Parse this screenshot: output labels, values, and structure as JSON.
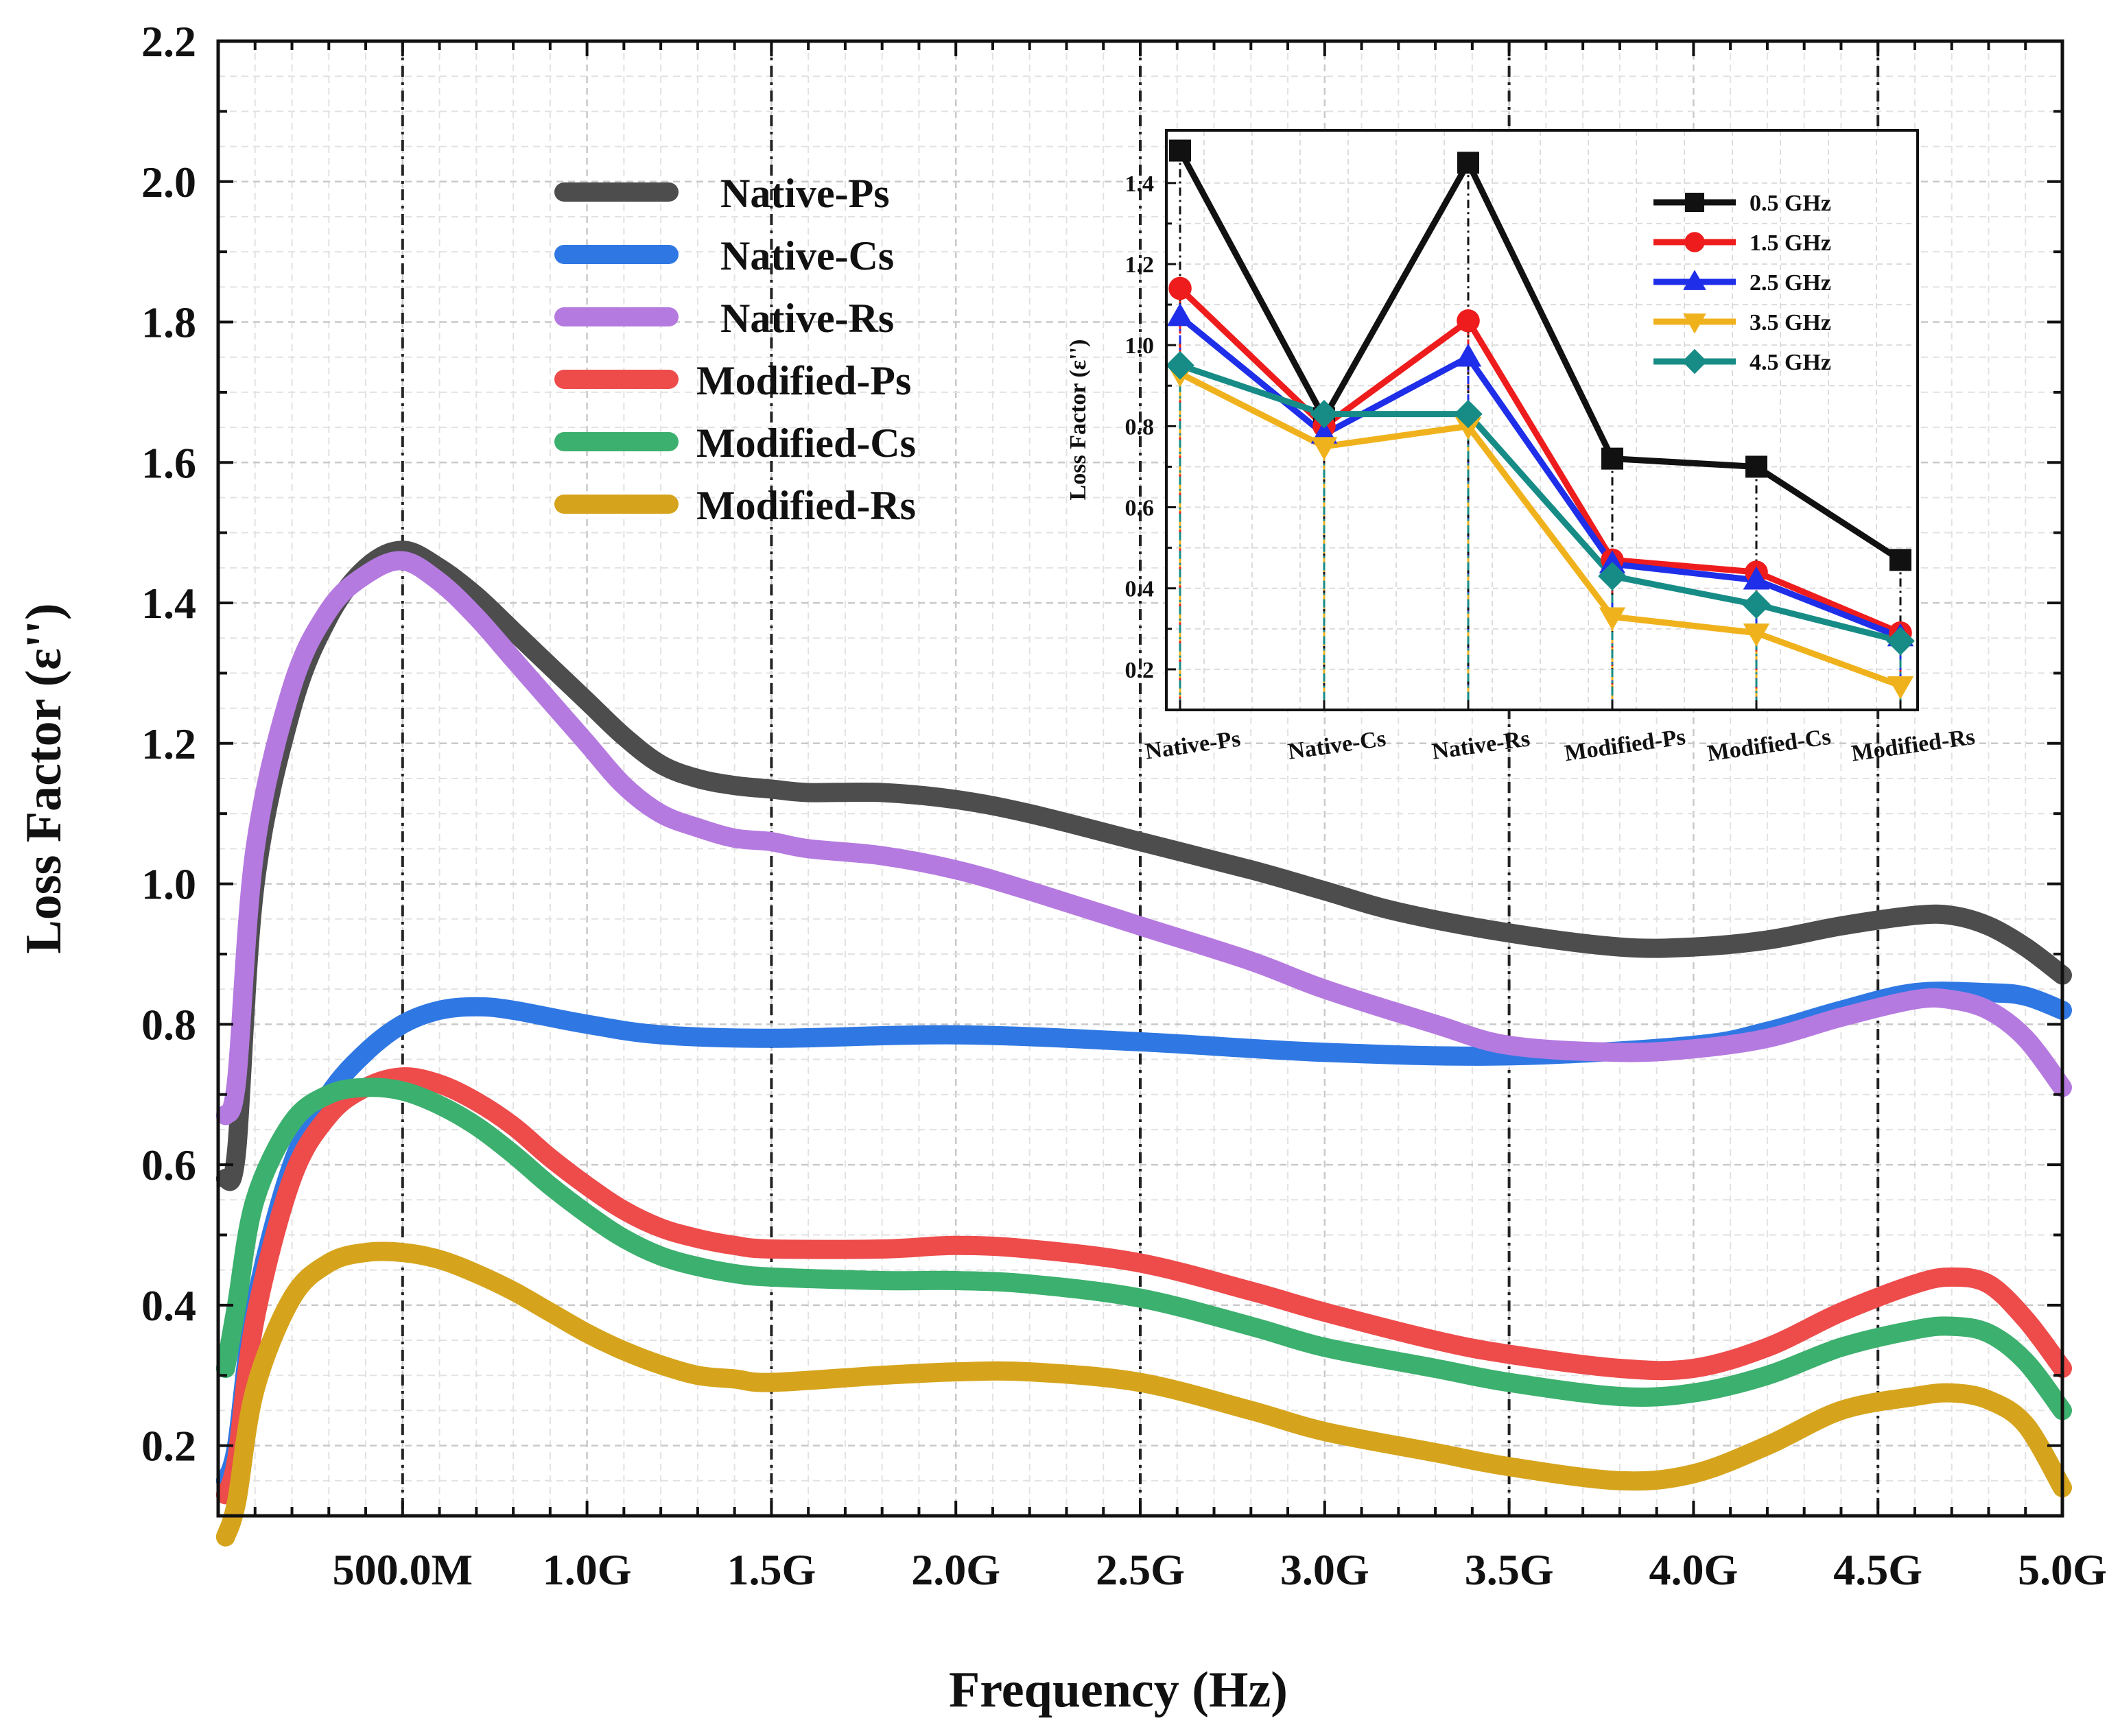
{
  "chart_data": [
    {
      "type": "line",
      "title": "",
      "xlabel": "Frequency (Hz)",
      "ylabel": "Loss Factor (ε'')",
      "xlim": [
        0,
        5.0
      ],
      "ylim": [
        0.1,
        2.2
      ],
      "x_unit": "GHz",
      "xtick_values": [
        0.5,
        1.0,
        1.5,
        2.0,
        2.5,
        3.0,
        3.5,
        4.0,
        4.5,
        5.0
      ],
      "xtick_labels": [
        "500.0M",
        "1.0G",
        "1.5G",
        "2.0G",
        "2.5G",
        "3.0G",
        "3.5G",
        "4.0G",
        "4.5G",
        "5.0G"
      ],
      "ytick_values": [
        0.2,
        0.4,
        0.6,
        0.8,
        1.0,
        1.2,
        1.4,
        1.6,
        1.8,
        2.0,
        2.2
      ],
      "ytick_labels": [
        "0.2",
        "0.4",
        "0.6",
        "0.8",
        "1.0",
        "1.2",
        "1.4",
        "1.6",
        "1.8",
        "2.0",
        "2.2"
      ],
      "reference_lines_x": [
        0.5,
        1.5,
        2.5,
        3.5,
        4.5
      ],
      "grid": true,
      "legend_position": "upper-center-left",
      "series": [
        {
          "name": "Native-Ps",
          "color": "#4d4d4d",
          "x": [
            0.02,
            0.05,
            0.1,
            0.2,
            0.3,
            0.4,
            0.5,
            0.6,
            0.7,
            0.8,
            0.9,
            1.0,
            1.1,
            1.2,
            1.3,
            1.4,
            1.5,
            1.6,
            1.8,
            2.0,
            2.2,
            2.5,
            2.8,
            3.0,
            3.2,
            3.5,
            3.8,
            4.0,
            4.2,
            4.4,
            4.6,
            4.7,
            4.8,
            4.9,
            5.0
          ],
          "y": [
            0.58,
            0.62,
            1.0,
            1.25,
            1.38,
            1.45,
            1.475,
            1.45,
            1.41,
            1.36,
            1.31,
            1.26,
            1.21,
            1.17,
            1.15,
            1.14,
            1.135,
            1.13,
            1.13,
            1.12,
            1.1,
            1.06,
            1.02,
            0.99,
            0.96,
            0.93,
            0.91,
            0.91,
            0.92,
            0.94,
            0.955,
            0.955,
            0.94,
            0.91,
            0.87
          ]
        },
        {
          "name": "Native-Cs",
          "color": "#2f78e3",
          "x": [
            0.02,
            0.05,
            0.1,
            0.2,
            0.3,
            0.4,
            0.5,
            0.6,
            0.7,
            0.8,
            1.0,
            1.2,
            1.5,
            2.0,
            2.5,
            3.0,
            3.5,
            4.0,
            4.2,
            4.4,
            4.6,
            4.8,
            4.9,
            5.0
          ],
          "y": [
            0.15,
            0.2,
            0.4,
            0.6,
            0.7,
            0.76,
            0.8,
            0.82,
            0.825,
            0.82,
            0.8,
            0.785,
            0.78,
            0.785,
            0.775,
            0.76,
            0.755,
            0.77,
            0.79,
            0.82,
            0.845,
            0.845,
            0.84,
            0.82
          ]
        },
        {
          "name": "Native-Rs",
          "color": "#b57ae0",
          "x": [
            0.02,
            0.05,
            0.1,
            0.2,
            0.3,
            0.4,
            0.5,
            0.6,
            0.7,
            0.8,
            0.9,
            1.0,
            1.1,
            1.2,
            1.3,
            1.4,
            1.5,
            1.6,
            1.8,
            2.0,
            2.2,
            2.5,
            2.8,
            3.0,
            3.3,
            3.5,
            3.8,
            4.0,
            4.2,
            4.4,
            4.6,
            4.7,
            4.8,
            4.9,
            5.0
          ],
          "y": [
            0.67,
            0.72,
            1.05,
            1.28,
            1.39,
            1.44,
            1.46,
            1.43,
            1.38,
            1.32,
            1.26,
            1.2,
            1.14,
            1.1,
            1.08,
            1.065,
            1.06,
            1.05,
            1.04,
            1.02,
            0.99,
            0.94,
            0.89,
            0.85,
            0.8,
            0.77,
            0.76,
            0.765,
            0.78,
            0.81,
            0.835,
            0.835,
            0.82,
            0.78,
            0.71
          ]
        },
        {
          "name": "Modified-Ps",
          "color": "#ee4b4b",
          "x": [
            0.02,
            0.05,
            0.1,
            0.2,
            0.3,
            0.4,
            0.5,
            0.6,
            0.7,
            0.8,
            0.9,
            1.0,
            1.1,
            1.2,
            1.3,
            1.4,
            1.5,
            1.8,
            2.0,
            2.2,
            2.5,
            2.8,
            3.0,
            3.3,
            3.5,
            3.8,
            4.0,
            4.2,
            4.4,
            4.6,
            4.7,
            4.8,
            4.9,
            5.0
          ],
          "y": [
            0.13,
            0.18,
            0.38,
            0.58,
            0.67,
            0.71,
            0.725,
            0.715,
            0.69,
            0.655,
            0.61,
            0.57,
            0.535,
            0.51,
            0.495,
            0.485,
            0.48,
            0.48,
            0.485,
            0.48,
            0.46,
            0.42,
            0.39,
            0.35,
            0.33,
            0.31,
            0.31,
            0.34,
            0.39,
            0.43,
            0.44,
            0.43,
            0.38,
            0.31
          ]
        },
        {
          "name": "Modified-Cs",
          "color": "#3cb06e",
          "x": [
            0.02,
            0.05,
            0.1,
            0.2,
            0.3,
            0.4,
            0.5,
            0.6,
            0.7,
            0.8,
            0.9,
            1.0,
            1.1,
            1.2,
            1.3,
            1.4,
            1.5,
            1.8,
            2.0,
            2.2,
            2.5,
            2.8,
            3.0,
            3.3,
            3.5,
            3.8,
            4.0,
            4.2,
            4.4,
            4.6,
            4.7,
            4.8,
            4.9,
            5.0
          ],
          "y": [
            0.31,
            0.4,
            0.55,
            0.66,
            0.7,
            0.71,
            0.705,
            0.685,
            0.655,
            0.615,
            0.57,
            0.53,
            0.495,
            0.47,
            0.455,
            0.445,
            0.44,
            0.435,
            0.435,
            0.43,
            0.41,
            0.37,
            0.34,
            0.31,
            0.29,
            0.27,
            0.275,
            0.3,
            0.34,
            0.365,
            0.37,
            0.36,
            0.32,
            0.25
          ]
        },
        {
          "name": "Modified-Rs",
          "color": "#d6a41c",
          "x": [
            0.02,
            0.05,
            0.1,
            0.2,
            0.3,
            0.4,
            0.5,
            0.6,
            0.7,
            0.8,
            0.9,
            1.0,
            1.1,
            1.2,
            1.3,
            1.4,
            1.5,
            1.8,
            2.0,
            2.2,
            2.5,
            2.8,
            3.0,
            3.3,
            3.5,
            3.8,
            4.0,
            4.2,
            4.4,
            4.6,
            4.7,
            4.8,
            4.9,
            5.0
          ],
          "y": [
            0.07,
            0.12,
            0.28,
            0.41,
            0.46,
            0.475,
            0.475,
            0.465,
            0.445,
            0.42,
            0.39,
            0.36,
            0.335,
            0.315,
            0.3,
            0.295,
            0.29,
            0.3,
            0.305,
            0.305,
            0.29,
            0.25,
            0.22,
            0.19,
            0.17,
            0.15,
            0.16,
            0.2,
            0.25,
            0.27,
            0.275,
            0.265,
            0.23,
            0.14
          ]
        }
      ]
    },
    {
      "type": "line",
      "title": "",
      "xlabel": "",
      "ylabel": "Loss Factor (ε'')",
      "categories": [
        "Native-Ps",
        "Native-Cs",
        "Native-Rs",
        "Modified-Ps",
        "Modified-Cs",
        "Modified-Rs"
      ],
      "ylim": [
        0.1,
        1.53
      ],
      "ytick_values": [
        0.2,
        0.4,
        0.6,
        0.8,
        1.0,
        1.2,
        1.4
      ],
      "ytick_labels": [
        "0.2",
        "0.4",
        "0.6",
        "0.8",
        "1.0",
        "1.2",
        "1.4"
      ],
      "grid": true,
      "legend_position": "top-right",
      "series": [
        {
          "name": "0.5 GHz",
          "color": "#111111",
          "marker": "square",
          "values": [
            1.48,
            0.82,
            1.45,
            0.72,
            0.7,
            0.47
          ]
        },
        {
          "name": "1.5 GHz",
          "color": "#ee1c1c",
          "marker": "circle",
          "values": [
            1.14,
            0.8,
            1.06,
            0.47,
            0.44,
            0.29
          ]
        },
        {
          "name": "2.5 GHz",
          "color": "#1f2ee8",
          "marker": "triangle-up",
          "values": [
            1.07,
            0.78,
            0.97,
            0.46,
            0.42,
            0.28
          ]
        },
        {
          "name": "3.5 GHz",
          "color": "#f0b21c",
          "marker": "triangle-down",
          "values": [
            0.93,
            0.75,
            0.8,
            0.33,
            0.29,
            0.16
          ]
        },
        {
          "name": "4.5 GHz",
          "color": "#178c86",
          "marker": "diamond",
          "values": [
            0.95,
            0.83,
            0.83,
            0.43,
            0.36,
            0.27
          ]
        }
      ]
    }
  ]
}
